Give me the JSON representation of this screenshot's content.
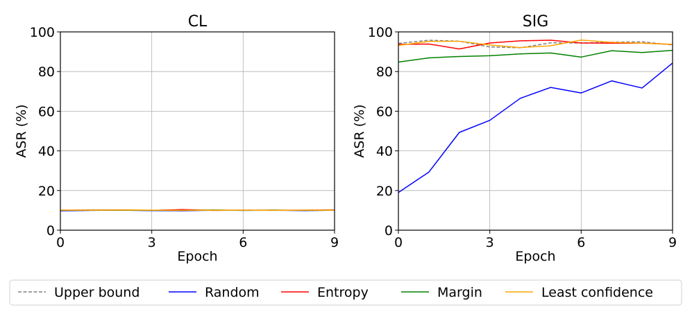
{
  "chart_data": [
    {
      "type": "line",
      "title": "CL",
      "xlabel": "Epoch",
      "ylabel": "ASR (%)",
      "xlim": [
        0,
        9
      ],
      "ylim": [
        0,
        100
      ],
      "xticks": [
        0,
        3,
        6,
        9
      ],
      "yticks": [
        0,
        20,
        40,
        60,
        80,
        100
      ],
      "grid": true,
      "x": [
        0,
        1,
        2,
        3,
        4,
        5,
        6,
        7,
        8,
        9
      ],
      "series": [
        {
          "name": "Upper bound",
          "values": [
            10,
            10.2,
            10.1,
            10,
            10.1,
            10,
            10.1,
            10,
            10.1,
            10.2
          ]
        },
        {
          "name": "Random",
          "values": [
            9.8,
            10,
            10.1,
            9.9,
            9.8,
            10.1,
            10,
            10.1,
            9.9,
            10.1
          ]
        },
        {
          "name": "Entropy",
          "values": [
            10.1,
            10.1,
            10.2,
            10,
            10.4,
            10,
            10.1,
            10.1,
            10.1,
            10.2
          ]
        },
        {
          "name": "Margin",
          "values": [
            10,
            10.1,
            10.1,
            10,
            10,
            10.2,
            10,
            10.1,
            10,
            10.1
          ]
        },
        {
          "name": "Least confidence",
          "values": [
            10.1,
            10.1,
            10.2,
            10.1,
            10,
            10.1,
            10.1,
            10,
            10.1,
            10.1
          ]
        }
      ]
    },
    {
      "type": "line",
      "title": "SIG",
      "xlabel": "Epoch",
      "ylabel": "ASR (%)",
      "xlim": [
        0,
        9
      ],
      "ylim": [
        0,
        100
      ],
      "xticks": [
        0,
        3,
        6,
        9
      ],
      "yticks": [
        0,
        20,
        40,
        60,
        80,
        100
      ],
      "grid": true,
      "x": [
        0,
        1,
        2,
        3,
        4,
        5,
        6,
        7,
        8,
        9
      ],
      "series": [
        {
          "name": "Upper bound",
          "values": [
            94.2,
            95.8,
            95.3,
            92.4,
            92,
            94.5,
            94.4,
            94.8,
            95,
            93.4
          ]
        },
        {
          "name": "Random",
          "values": [
            19,
            29.3,
            49.3,
            55.4,
            66.5,
            72,
            69.2,
            75.3,
            71.7,
            84.3
          ]
        },
        {
          "name": "Entropy",
          "values": [
            93.7,
            93.9,
            91.4,
            94.4,
            95.5,
            95.8,
            94.4,
            94.3,
            94.3,
            93.7
          ]
        },
        {
          "name": "Margin",
          "values": [
            84.8,
            86.9,
            87.6,
            88,
            88.9,
            89.4,
            87.3,
            90.5,
            89.6,
            90.7
          ]
        },
        {
          "name": "Least confidence",
          "values": [
            93.2,
            95.2,
            95.3,
            93.4,
            92.1,
            93,
            95.9,
            94.7,
            94.3,
            93.7
          ]
        }
      ]
    }
  ],
  "legend": {
    "placement": "bottom",
    "items": [
      {
        "label": "Upper bound",
        "color": "#808080",
        "style": "dashed"
      },
      {
        "label": "Random",
        "color": "#0000ff",
        "style": "solid"
      },
      {
        "label": "Entropy",
        "color": "#ff0000",
        "style": "solid"
      },
      {
        "label": "Margin",
        "color": "#008000",
        "style": "solid"
      },
      {
        "label": "Least confidence",
        "color": "#ffa500",
        "style": "solid"
      }
    ]
  }
}
